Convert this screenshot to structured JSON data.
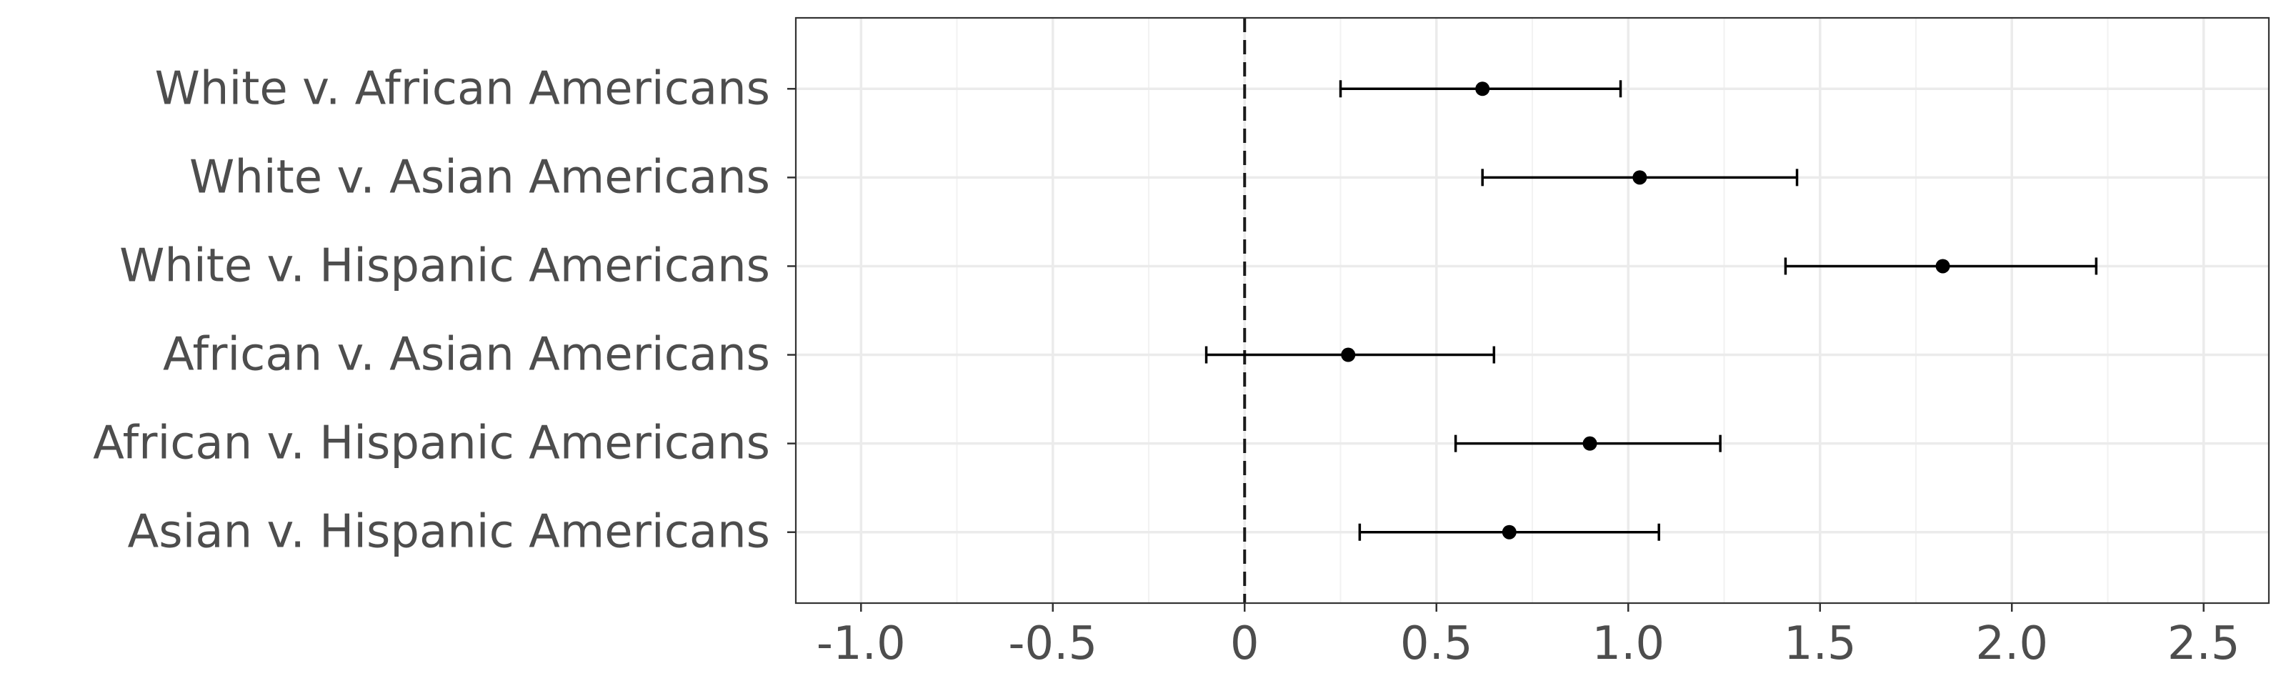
{
  "chart_data": {
    "type": "scatter",
    "subtype": "forest-plot",
    "title": "",
    "xlabel": "",
    "ylabel": "",
    "xlim": [
      -1.17,
      2.67
    ],
    "x_ticks": [
      -1.0,
      -0.5,
      0,
      0.5,
      1.0,
      1.5,
      2.0,
      2.5
    ],
    "x_tick_labels": [
      "-1.0",
      "-0.5",
      "0",
      "0.5",
      "1.0",
      "1.5",
      "2.0",
      "2.5"
    ],
    "reference_line_x": 0,
    "grid": true,
    "legend": "none",
    "categories": [
      "White v. African Americans",
      "White v. Asian Americans",
      "White v. Hispanic Americans",
      "African v. Asian Americans",
      "African v. Hispanic Americans",
      "Asian v. Hispanic Americans"
    ],
    "estimates": [
      0.62,
      1.03,
      1.82,
      0.27,
      0.9,
      0.69
    ],
    "ci_lower": [
      0.25,
      0.62,
      1.41,
      -0.1,
      0.55,
      0.3
    ],
    "ci_upper": [
      0.98,
      1.44,
      2.22,
      0.65,
      1.24,
      1.08
    ]
  },
  "colors": {
    "panel_border": "#333333",
    "grid_major": "#ebebeb",
    "grid_minor": "#f2f2f2",
    "points": "#000000",
    "error_bars": "#000000",
    "reference_line": "#1a1a1a",
    "tick_text": "#4d4d4d",
    "tick_marks": "#333333"
  }
}
